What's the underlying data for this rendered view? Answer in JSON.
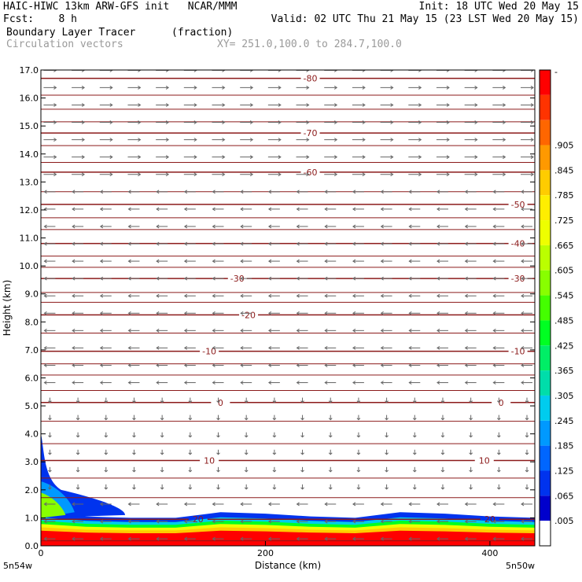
{
  "header": {
    "line1_left": "HAIC-HIWC 13km ARW-GFS init   NCAR/MMM",
    "line1_right": "Init: 18 UTC Wed 20 May 15",
    "line2_left": "Fcst:    8 h",
    "line2_right": "Valid: 02 UTC Thu 21 May 15 (23 LST Wed 20 May 15)",
    "line3_left": "Boundary Layer Tracer",
    "line3_units": "(fraction)",
    "line4_left": "Circulation vectors",
    "line4_xy": "XY= 251.0,100.0 to 284.7,100.0"
  },
  "chart_data": {
    "type": "heatmap",
    "xlabel": "Distance (km)",
    "ylabel": "Height (km)",
    "xlim": [
      0,
      440
    ],
    "ylim": [
      0,
      17
    ],
    "x_ticks": [
      {
        "value": 0,
        "label": "0"
      },
      {
        "value": 200,
        "label": "200"
      },
      {
        "value": 400,
        "label": "400"
      }
    ],
    "x_endpoint_labels": {
      "left": "5n54w",
      "right": "5n50w"
    },
    "y_ticks": [
      {
        "value": 0,
        "label": "0.0"
      },
      {
        "value": 1,
        "label": "1.0"
      },
      {
        "value": 2,
        "label": "2.0"
      },
      {
        "value": 3,
        "label": "3.0"
      },
      {
        "value": 4,
        "label": "4.0"
      },
      {
        "value": 5,
        "label": "5.0"
      },
      {
        "value": 6,
        "label": "6.0"
      },
      {
        "value": 7,
        "label": "7.0"
      },
      {
        "value": 8,
        "label": "8.0"
      },
      {
        "value": 9,
        "label": "9.0"
      },
      {
        "value": 10,
        "label": "10.0"
      },
      {
        "value": 11,
        "label": "11.0"
      },
      {
        "value": 12,
        "label": "12.0"
      },
      {
        "value": 13,
        "label": "13.0"
      },
      {
        "value": 14,
        "label": "14.0"
      },
      {
        "value": 15,
        "label": "15.0"
      },
      {
        "value": 16,
        "label": "16.0"
      },
      {
        "value": 17,
        "label": "17.0"
      }
    ],
    "colorbar": {
      "labels": [
        "-",
        ".905",
        ".845",
        ".785",
        ".725",
        ".665",
        ".605",
        ".545",
        ".485",
        ".425",
        ".365",
        ".305",
        ".245",
        ".185",
        ".125",
        ".065",
        ".005"
      ],
      "colors_top_to_bottom": [
        "#ff0000",
        "#ff3300",
        "#ff6600",
        "#ff9900",
        "#ffcc00",
        "#ffee00",
        "#eeff00",
        "#bbff00",
        "#88ff00",
        "#44ff00",
        "#00ff22",
        "#00ee66",
        "#00ddaa",
        "#00ccee",
        "#0099ff",
        "#0066ff",
        "#0033ee",
        "#0000cc",
        "#ffffff"
      ]
    },
    "isotherm_color": "#8b1a1a",
    "isotherms": [
      {
        "label": "-80",
        "height": 16.7,
        "label_x": [
          240
        ]
      },
      {
        "label": "-70",
        "height": 14.75,
        "label_x": [
          240
        ]
      },
      {
        "label": "-60",
        "height": 13.35,
        "label_x": [
          240
        ]
      },
      {
        "label": "-50",
        "height": 12.2,
        "label_x": [
          425
        ]
      },
      {
        "label": "-40",
        "height": 10.8,
        "label_x": [
          425
        ]
      },
      {
        "label": "-30",
        "height": 9.55,
        "label_x": [
          175,
          425
        ]
      },
      {
        "label": "-20",
        "height": 8.25,
        "label_x": [
          185
        ]
      },
      {
        "label": "-10",
        "height": 6.95,
        "label_x": [
          150,
          425
        ]
      },
      {
        "label": "0",
        "height": 5.12,
        "label_x": [
          160,
          410
        ]
      },
      {
        "label": "10",
        "height": 3.05,
        "label_x": [
          150,
          395
        ]
      },
      {
        "label": "20",
        "height": 0.95,
        "label_x": [
          140,
          400
        ]
      }
    ],
    "unlabeled_contour_heights": [
      0.18,
      1.72,
      2.42,
      3.65,
      4.45,
      5.55,
      6.1,
      6.5,
      7.6,
      8.7,
      9.05,
      9.95,
      10.35,
      11.3,
      11.72,
      12.65,
      13.7,
      14.3,
      15.15,
      15.6,
      16.1
    ],
    "tracer_layer": [
      {
        "x": 0,
        "top": 1.2
      },
      {
        "x": 40,
        "top": 1.05
      },
      {
        "x": 80,
        "top": 1.0
      },
      {
        "x": 120,
        "top": 1.0
      },
      {
        "x": 160,
        "top": 1.2
      },
      {
        "x": 200,
        "top": 1.15
      },
      {
        "x": 240,
        "top": 1.05
      },
      {
        "x": 280,
        "top": 1.0
      },
      {
        "x": 320,
        "top": 1.2
      },
      {
        "x": 360,
        "top": 1.15
      },
      {
        "x": 400,
        "top": 1.05
      },
      {
        "x": 440,
        "top": 1.0
      }
    ],
    "tracer_plume_left": {
      "x_extent": 75,
      "top": 4.0
    },
    "wind_regimes": [
      {
        "z_min": 13.2,
        "z_max": 17.0,
        "direction": "east"
      },
      {
        "z_min": 5.5,
        "z_max": 13.2,
        "direction": "west"
      },
      {
        "z_min": 1.5,
        "z_max": 5.5,
        "direction": "down"
      },
      {
        "z_min": 0.0,
        "z_max": 1.5,
        "direction": "west"
      }
    ]
  }
}
